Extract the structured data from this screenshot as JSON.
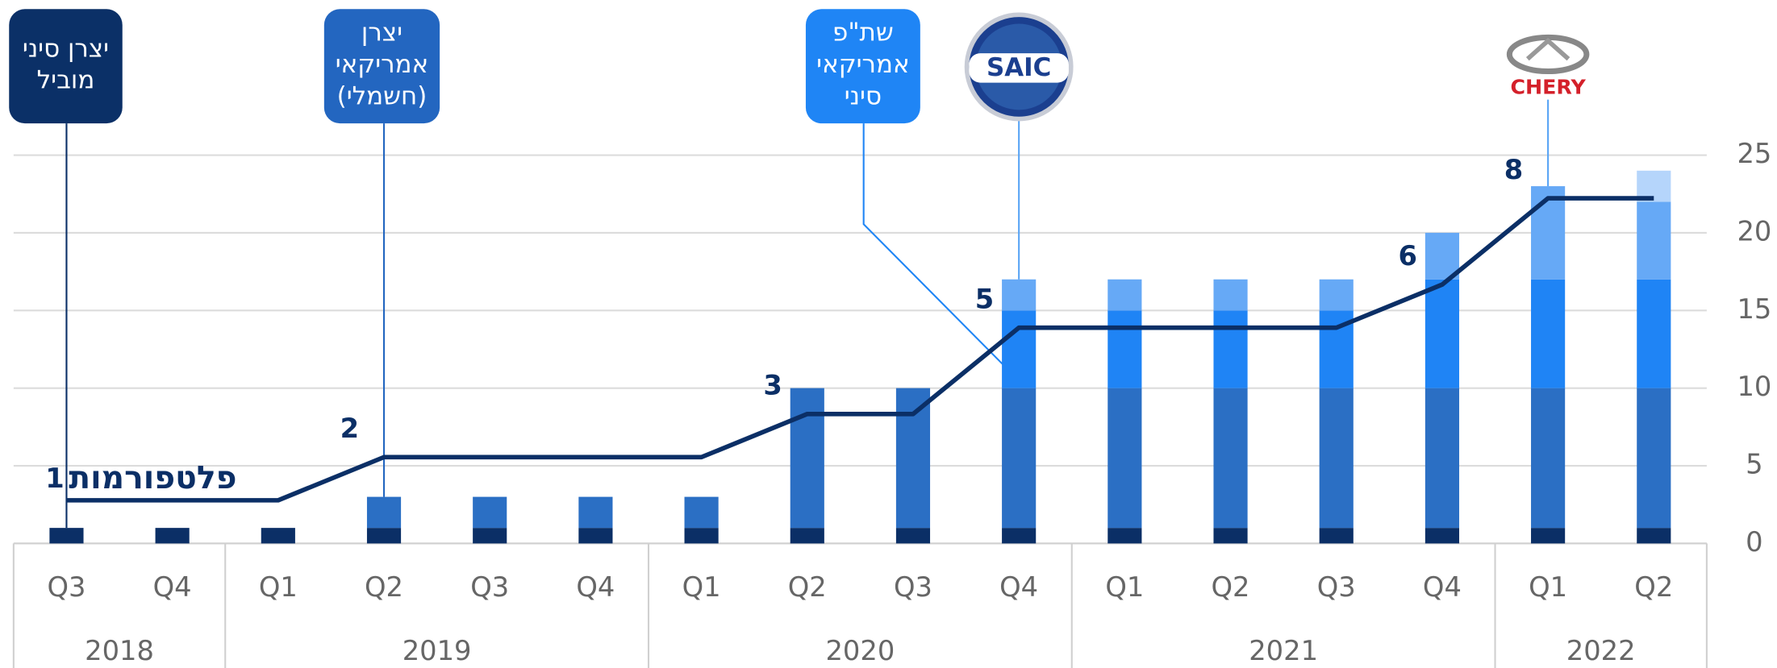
{
  "chart_data": {
    "type": "bar",
    "categories": [
      "Q3",
      "Q4",
      "Q1",
      "Q2",
      "Q3",
      "Q4",
      "Q1",
      "Q2",
      "Q3",
      "Q4",
      "Q1",
      "Q2",
      "Q3",
      "Q4",
      "Q1",
      "Q2"
    ],
    "groups": [
      {
        "label": "2018",
        "count": 2
      },
      {
        "label": "2019",
        "count": 4
      },
      {
        "label": "2020",
        "count": 4
      },
      {
        "label": "2021",
        "count": 4
      },
      {
        "label": "2022",
        "count": 2
      }
    ],
    "series": [
      {
        "color": "#0b2f66",
        "values": [
          1,
          1,
          1,
          1,
          1,
          1,
          1,
          1,
          1,
          1,
          1,
          1,
          1,
          1,
          1,
          1
        ]
      },
      {
        "color": "#2b6fc4",
        "values": [
          0,
          0,
          0,
          2,
          2,
          2,
          2,
          9,
          9,
          9,
          9,
          9,
          9,
          9,
          9,
          9
        ]
      },
      {
        "color": "#1f84f5",
        "values": [
          0,
          0,
          0,
          0,
          0,
          0,
          0,
          0,
          0,
          5,
          5,
          5,
          5,
          7,
          7,
          7
        ]
      },
      {
        "color": "#66a9f6",
        "values": [
          0,
          0,
          0,
          0,
          0,
          0,
          0,
          0,
          0,
          2,
          2,
          2,
          2,
          3,
          6,
          5
        ]
      },
      {
        "color": "#b5d5fb",
        "values": [
          0,
          0,
          0,
          0,
          0,
          0,
          0,
          0,
          0,
          0,
          0,
          0,
          0,
          0,
          0,
          2
        ]
      },
      {
        "type": "line",
        "axis": "y2",
        "color": "#0b2f66",
        "values": [
          1,
          1,
          1,
          2,
          2,
          2,
          2,
          3,
          3,
          5,
          5,
          5,
          5,
          6,
          8,
          8
        ],
        "value_labels": [
          "1",
          null,
          null,
          "2",
          null,
          null,
          null,
          "3",
          null,
          "5",
          null,
          null,
          null,
          "6",
          "8",
          null
        ]
      }
    ],
    "ylim": [
      0,
      25
    ],
    "yticks": [
      0,
      5,
      10,
      15,
      20,
      25
    ],
    "y2lim": [
      0,
      9
    ],
    "grid": true,
    "annotation": "פלטפורמות",
    "callouts": [
      {
        "index": 0,
        "color": "#0b3067",
        "lines": [
          "יצרן סיני",
          "מוביל"
        ]
      },
      {
        "index": 3,
        "color": "#2366c0",
        "lines": [
          "יצרן",
          "אמריקאי",
          "(חשמלי)"
        ]
      },
      {
        "index": 9,
        "color": "#1f85f5",
        "lines": [
          "שת\"פ",
          "אמריקאי",
          "סיני"
        ]
      }
    ],
    "logos": [
      {
        "index": 9,
        "label": "SAIC"
      },
      {
        "index": 14,
        "label": "CHERY"
      }
    ]
  }
}
